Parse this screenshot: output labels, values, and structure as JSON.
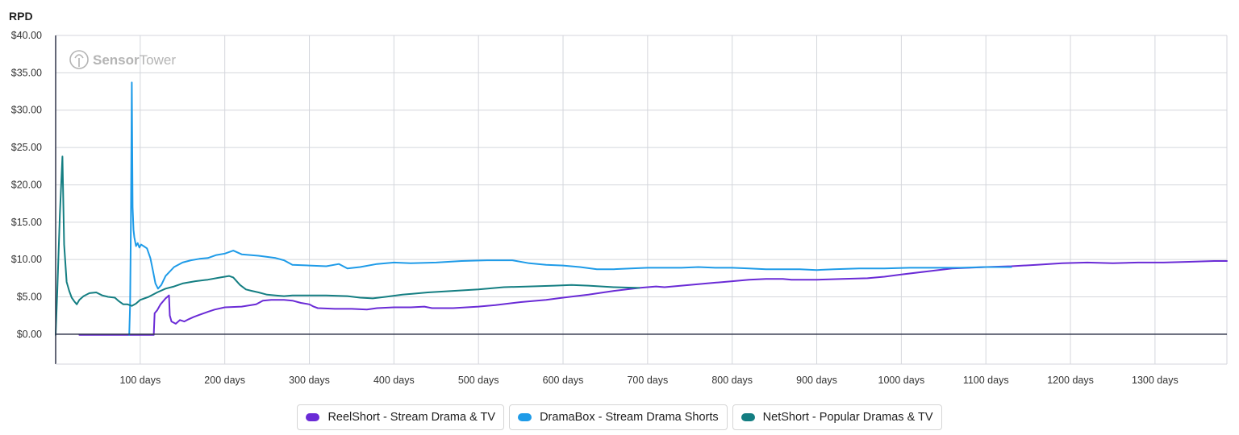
{
  "colors": {
    "reelshort": "#6a2bd6",
    "dramabox": "#1e9be8",
    "netshort": "#147e82",
    "grid": "#d4d6dc",
    "axis": "#30354a"
  },
  "watermark": {
    "icon": "sensor-tower-logo-icon",
    "bold": "Sensor",
    "light": "Tower"
  },
  "legend": [
    {
      "key": "reelshort",
      "label": "ReelShort - Stream Drama & TV"
    },
    {
      "key": "dramabox",
      "label": "DramaBox - Stream Drama Shorts"
    },
    {
      "key": "netshort",
      "label": "NetShort - Popular Dramas & TV"
    }
  ],
  "chart_data": {
    "type": "line",
    "title": "",
    "ylabel": "RPD",
    "xlabel": "",
    "xlim": [
      0,
      1385
    ],
    "ylim": [
      -4,
      40
    ],
    "grid": true,
    "legend_position": "bottom-center",
    "y_ticks": [
      {
        "value": 0,
        "label": "$0.00"
      },
      {
        "value": 5,
        "label": "$5.00"
      },
      {
        "value": 10,
        "label": "$10.00"
      },
      {
        "value": 15,
        "label": "$15.00"
      },
      {
        "value": 20,
        "label": "$20.00"
      },
      {
        "value": 25,
        "label": "$25.00"
      },
      {
        "value": 30,
        "label": "$30.00"
      },
      {
        "value": 35,
        "label": "$35.00"
      },
      {
        "value": 40,
        "label": "$40.00"
      }
    ],
    "x_ticks": [
      {
        "value": 100,
        "label": "100 days"
      },
      {
        "value": 200,
        "label": "200 days"
      },
      {
        "value": 300,
        "label": "300 days"
      },
      {
        "value": 400,
        "label": "400 days"
      },
      {
        "value": 500,
        "label": "500 days"
      },
      {
        "value": 600,
        "label": "600 days"
      },
      {
        "value": 700,
        "label": "700 days"
      },
      {
        "value": 800,
        "label": "800 days"
      },
      {
        "value": 900,
        "label": "900 days"
      },
      {
        "value": 1000,
        "label": "1000 days"
      },
      {
        "value": 1100,
        "label": "1100 days"
      },
      {
        "value": 1200,
        "label": "1200 days"
      },
      {
        "value": 1300,
        "label": "1300 days"
      }
    ],
    "series": [
      {
        "key": "reelshort",
        "name": "ReelShort - Stream Drama & TV",
        "points": [
          [
            28,
            -0.1
          ],
          [
            60,
            -0.1
          ],
          [
            100,
            -0.1
          ],
          [
            116,
            -0.1
          ],
          [
            117,
            2.8
          ],
          [
            120,
            3.2
          ],
          [
            124,
            4.0
          ],
          [
            130,
            4.8
          ],
          [
            134,
            5.2
          ],
          [
            135,
            2.5
          ],
          [
            137,
            1.7
          ],
          [
            142,
            1.4
          ],
          [
            147,
            1.9
          ],
          [
            152,
            1.7
          ],
          [
            157,
            2.0
          ],
          [
            163,
            2.3
          ],
          [
            170,
            2.6
          ],
          [
            180,
            3.0
          ],
          [
            188,
            3.3
          ],
          [
            200,
            3.6
          ],
          [
            220,
            3.7
          ],
          [
            237,
            4.0
          ],
          [
            245,
            4.5
          ],
          [
            255,
            4.6
          ],
          [
            270,
            4.6
          ],
          [
            280,
            4.5
          ],
          [
            290,
            4.2
          ],
          [
            300,
            4.0
          ],
          [
            305,
            3.7
          ],
          [
            310,
            3.5
          ],
          [
            330,
            3.4
          ],
          [
            350,
            3.4
          ],
          [
            368,
            3.3
          ],
          [
            380,
            3.5
          ],
          [
            400,
            3.6
          ],
          [
            420,
            3.6
          ],
          [
            436,
            3.7
          ],
          [
            445,
            3.5
          ],
          [
            470,
            3.5
          ],
          [
            500,
            3.7
          ],
          [
            520,
            3.9
          ],
          [
            550,
            4.3
          ],
          [
            580,
            4.6
          ],
          [
            600,
            4.9
          ],
          [
            630,
            5.3
          ],
          [
            660,
            5.8
          ],
          [
            690,
            6.2
          ],
          [
            710,
            6.4
          ],
          [
            720,
            6.3
          ],
          [
            740,
            6.5
          ],
          [
            760,
            6.7
          ],
          [
            780,
            6.9
          ],
          [
            800,
            7.1
          ],
          [
            820,
            7.3
          ],
          [
            840,
            7.4
          ],
          [
            860,
            7.4
          ],
          [
            870,
            7.3
          ],
          [
            900,
            7.3
          ],
          [
            930,
            7.4
          ],
          [
            960,
            7.5
          ],
          [
            980,
            7.7
          ],
          [
            1000,
            8.0
          ],
          [
            1030,
            8.4
          ],
          [
            1060,
            8.8
          ],
          [
            1100,
            9.0
          ],
          [
            1130,
            9.1
          ],
          [
            1160,
            9.3
          ],
          [
            1190,
            9.5
          ],
          [
            1220,
            9.6
          ],
          [
            1250,
            9.5
          ],
          [
            1280,
            9.6
          ],
          [
            1310,
            9.6
          ],
          [
            1340,
            9.7
          ],
          [
            1370,
            9.8
          ],
          [
            1385,
            9.8
          ]
        ]
      },
      {
        "key": "dramabox",
        "name": "DramaBox - Stream Drama Shorts",
        "points": [
          [
            87,
            -0.1
          ],
          [
            88,
            4.0
          ],
          [
            89,
            15.0
          ],
          [
            90,
            33.7
          ],
          [
            91,
            17.0
          ],
          [
            92,
            14.0
          ],
          [
            93,
            13.0
          ],
          [
            95,
            11.8
          ],
          [
            97,
            12.2
          ],
          [
            99,
            11.6
          ],
          [
            101,
            12.0
          ],
          [
            104,
            11.8
          ],
          [
            108,
            11.5
          ],
          [
            112,
            10.2
          ],
          [
            115,
            8.5
          ],
          [
            118,
            6.8
          ],
          [
            121,
            6.1
          ],
          [
            125,
            6.6
          ],
          [
            130,
            7.8
          ],
          [
            140,
            9.0
          ],
          [
            150,
            9.6
          ],
          [
            160,
            9.9
          ],
          [
            170,
            10.1
          ],
          [
            180,
            10.2
          ],
          [
            190,
            10.6
          ],
          [
            200,
            10.8
          ],
          [
            210,
            11.2
          ],
          [
            220,
            10.7
          ],
          [
            240,
            10.5
          ],
          [
            260,
            10.2
          ],
          [
            270,
            9.9
          ],
          [
            280,
            9.3
          ],
          [
            300,
            9.2
          ],
          [
            320,
            9.1
          ],
          [
            335,
            9.4
          ],
          [
            345,
            8.8
          ],
          [
            360,
            9.0
          ],
          [
            380,
            9.4
          ],
          [
            400,
            9.6
          ],
          [
            420,
            9.5
          ],
          [
            450,
            9.6
          ],
          [
            480,
            9.8
          ],
          [
            510,
            9.9
          ],
          [
            540,
            9.9
          ],
          [
            560,
            9.5
          ],
          [
            580,
            9.3
          ],
          [
            600,
            9.2
          ],
          [
            620,
            9.0
          ],
          [
            640,
            8.7
          ],
          [
            660,
            8.7
          ],
          [
            680,
            8.8
          ],
          [
            700,
            8.9
          ],
          [
            720,
            8.9
          ],
          [
            740,
            8.9
          ],
          [
            760,
            9.0
          ],
          [
            780,
            8.9
          ],
          [
            800,
            8.9
          ],
          [
            820,
            8.8
          ],
          [
            840,
            8.7
          ],
          [
            860,
            8.7
          ],
          [
            880,
            8.7
          ],
          [
            900,
            8.6
          ],
          [
            920,
            8.7
          ],
          [
            950,
            8.8
          ],
          [
            980,
            8.8
          ],
          [
            1010,
            8.9
          ],
          [
            1040,
            8.9
          ],
          [
            1070,
            8.9
          ],
          [
            1100,
            9.0
          ],
          [
            1130,
            9.0
          ]
        ]
      },
      {
        "key": "netshort",
        "name": "NetShort - Popular Dramas & TV",
        "points": [
          [
            0,
            -0.1
          ],
          [
            2,
            6.0
          ],
          [
            5,
            16.0
          ],
          [
            8,
            23.8
          ],
          [
            10,
            12.0
          ],
          [
            13,
            7.0
          ],
          [
            16,
            5.8
          ],
          [
            19,
            4.9
          ],
          [
            22,
            4.4
          ],
          [
            25,
            4.0
          ],
          [
            28,
            4.6
          ],
          [
            33,
            5.1
          ],
          [
            40,
            5.5
          ],
          [
            48,
            5.6
          ],
          [
            55,
            5.2
          ],
          [
            62,
            5.0
          ],
          [
            70,
            4.9
          ],
          [
            75,
            4.4
          ],
          [
            80,
            4.0
          ],
          [
            85,
            4.0
          ],
          [
            90,
            3.8
          ],
          [
            95,
            4.1
          ],
          [
            100,
            4.6
          ],
          [
            110,
            5.0
          ],
          [
            120,
            5.6
          ],
          [
            130,
            6.1
          ],
          [
            140,
            6.4
          ],
          [
            150,
            6.8
          ],
          [
            165,
            7.1
          ],
          [
            180,
            7.3
          ],
          [
            195,
            7.6
          ],
          [
            205,
            7.8
          ],
          [
            210,
            7.6
          ],
          [
            218,
            6.6
          ],
          [
            225,
            6.0
          ],
          [
            232,
            5.8
          ],
          [
            240,
            5.6
          ],
          [
            250,
            5.3
          ],
          [
            260,
            5.2
          ],
          [
            270,
            5.1
          ],
          [
            280,
            5.2
          ],
          [
            300,
            5.2
          ],
          [
            320,
            5.2
          ],
          [
            345,
            5.1
          ],
          [
            360,
            4.9
          ],
          [
            375,
            4.8
          ],
          [
            390,
            5.0
          ],
          [
            410,
            5.3
          ],
          [
            440,
            5.6
          ],
          [
            470,
            5.8
          ],
          [
            500,
            6.0
          ],
          [
            530,
            6.3
          ],
          [
            560,
            6.4
          ],
          [
            590,
            6.5
          ],
          [
            610,
            6.6
          ],
          [
            630,
            6.5
          ],
          [
            660,
            6.3
          ],
          [
            690,
            6.2
          ]
        ]
      }
    ]
  }
}
